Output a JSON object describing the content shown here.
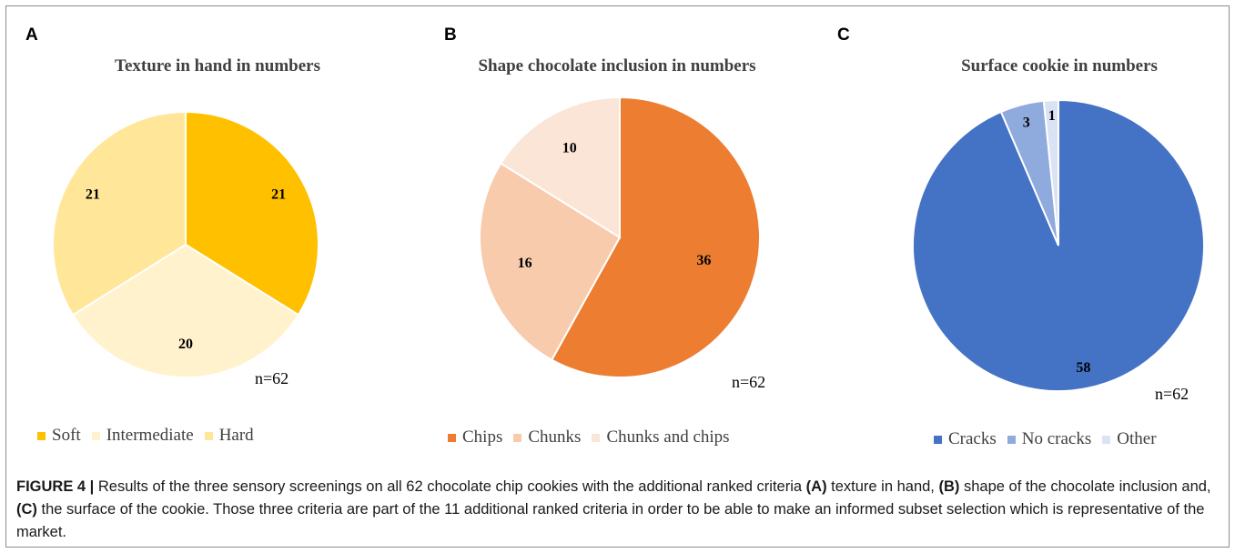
{
  "figure": {
    "caption_label": "FIGURE 4 |",
    "caption_parts": [
      {
        "text": " Results of the three sensory screenings on all 62 chocolate chip cookies with the additional ranked criteria ",
        "bold": false
      },
      {
        "text": "(A)",
        "bold": true
      },
      {
        "text": " texture in hand, ",
        "bold": false
      },
      {
        "text": "(B)",
        "bold": true
      },
      {
        "text": " shape of the chocolate inclusion and, ",
        "bold": false
      },
      {
        "text": "(C)",
        "bold": true
      },
      {
        "text": " the surface of the cookie. Those three criteria are part of the 11 additional ranked criteria in order to be able to make an informed subset selection which is representative of the market.",
        "bold": false
      }
    ]
  },
  "chart_data": [
    {
      "type": "pie",
      "panel": "A",
      "title": "Texture in hand in numbers",
      "note": "n=62",
      "categories": [
        "Soft",
        "Intermediate",
        "Hard"
      ],
      "values": [
        21,
        20,
        21
      ],
      "colors": [
        "#FFC000",
        "#FFF2CC",
        "#FFE699"
      ],
      "legend_position": "bottom"
    },
    {
      "type": "pie",
      "panel": "B",
      "title": "Shape chocolate inclusion in numbers",
      "note": "n=62",
      "categories": [
        "Chips",
        "Chunks",
        "Chunks and chips"
      ],
      "values": [
        36,
        16,
        10
      ],
      "colors": [
        "#ED7D31",
        "#F8CBAD",
        "#FBE5D6"
      ],
      "legend_position": "bottom"
    },
    {
      "type": "pie",
      "panel": "C",
      "title": "Surface cookie in numbers",
      "note": "n=62",
      "categories": [
        "Cracks",
        "No cracks",
        "Other"
      ],
      "values": [
        58,
        3,
        1
      ],
      "colors": [
        "#4472C4",
        "#8FAADC",
        "#DAE3F3"
      ],
      "legend_position": "bottom"
    }
  ]
}
